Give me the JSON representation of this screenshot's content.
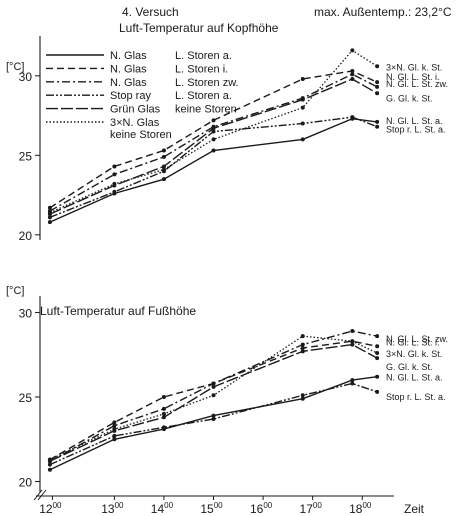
{
  "header": {
    "experiment": "4. Versuch",
    "max_temp": "max. Außentemp.: 23,2°C"
  },
  "charts": [
    {
      "type": "line",
      "title": "Luft-Temperatur auf Kopfhöhe",
      "ylabel": "[°C]",
      "ylim": [
        19.8,
        32
      ],
      "yticks": [
        20,
        25,
        30
      ],
      "legend": [
        {
          "glass": "N. Glas",
          "storen": "L. Storen a.",
          "style": "solid"
        },
        {
          "glass": "N. Glas",
          "storen": "L. Storen i.",
          "style": "dashed"
        },
        {
          "glass": "N. Glas",
          "storen": "L. Storen zw.",
          "style": "dashdot"
        },
        {
          "glass": "Stop ray",
          "storen": "L. Storen a.",
          "style": "dashdotdot"
        },
        {
          "glass": "Grün Glas",
          "storen": "keine Storen",
          "style": "longdash"
        },
        {
          "glass": "3×N. Glas",
          "glass2": "keine Storen",
          "storen": "",
          "style": "dotted"
        }
      ],
      "series": [
        {
          "style": "solid",
          "label": "N. Gl. L. St. a.",
          "x": [
            11.7,
            13.0,
            14.0,
            15.0,
            16.8,
            17.8,
            18.3
          ],
          "y": [
            20.8,
            22.6,
            23.5,
            25.3,
            26.0,
            27.3,
            27.1
          ]
        },
        {
          "style": "dashed",
          "label": "N. Gl. L. St. i.",
          "x": [
            11.7,
            13.0,
            14.0,
            15.0,
            16.8,
            17.8,
            18.3
          ],
          "y": [
            21.7,
            24.3,
            25.3,
            27.2,
            29.8,
            30.3,
            29.6
          ]
        },
        {
          "style": "dashdot",
          "label": "N. Gl. L. St. zw.",
          "x": [
            11.7,
            13.0,
            14.0,
            15.0,
            16.8,
            17.8,
            18.3
          ],
          "y": [
            21.5,
            23.8,
            24.9,
            26.8,
            28.6,
            30.1,
            29.3
          ]
        },
        {
          "style": "dashdotdot",
          "label": "Stop r. L. St. a.",
          "x": [
            11.7,
            13.0,
            14.0,
            15.0,
            16.8,
            17.8,
            18.3
          ],
          "y": [
            21.1,
            22.7,
            24.0,
            26.5,
            27.0,
            27.4,
            26.8
          ]
        },
        {
          "style": "longdash",
          "label": "G. Gl. k. St.",
          "x": [
            11.7,
            13.0,
            14.0,
            15.0,
            16.8,
            17.8,
            18.3
          ],
          "y": [
            21.3,
            23.1,
            24.3,
            26.7,
            28.5,
            29.8,
            28.9
          ]
        },
        {
          "style": "dotted",
          "label": "3×N. Gl. k. St.",
          "x": [
            11.7,
            13.0,
            14.0,
            15.0,
            16.8,
            17.8,
            18.3
          ],
          "y": [
            21.4,
            23.2,
            24.1,
            26.0,
            28.0,
            31.6,
            30.6
          ]
        }
      ]
    },
    {
      "type": "line",
      "title": "Luft-Temperatur auf Fußhöhe",
      "ylabel": "[°C]",
      "ylim": [
        19.5,
        30.5
      ],
      "yticks": [
        20,
        25,
        30
      ],
      "xlabel": "Zeit",
      "xticks": [
        {
          "v": 11.75,
          "h": "12",
          "m": "00"
        },
        {
          "v": 13,
          "h": "13",
          "m": "00"
        },
        {
          "v": 14,
          "h": "14",
          "m": "00"
        },
        {
          "v": 15,
          "h": "15",
          "m": "00"
        },
        {
          "v": 16,
          "h": "16",
          "m": "00"
        },
        {
          "v": 17,
          "h": "17",
          "m": "00"
        },
        {
          "v": 18,
          "h": "18",
          "m": "00"
        }
      ],
      "series": [
        {
          "style": "solid",
          "label": "N. Gl. L. St. a.",
          "x": [
            11.7,
            13.0,
            14.0,
            15.0,
            16.8,
            17.8,
            18.3
          ],
          "y": [
            20.7,
            22.5,
            23.1,
            23.9,
            24.9,
            26.0,
            26.2
          ]
        },
        {
          "style": "dashed",
          "label": "N. Gl. L. St. i.",
          "x": [
            11.7,
            13.0,
            14.0,
            15.0,
            16.8,
            17.8,
            18.3
          ],
          "y": [
            21.3,
            23.5,
            25.0,
            25.8,
            27.9,
            28.3,
            28.0
          ]
        },
        {
          "style": "dashdot",
          "label": "N. Gl. L. St. zw.",
          "x": [
            11.7,
            13.0,
            14.0,
            15.0,
            16.8,
            17.8,
            18.3
          ],
          "y": [
            21.2,
            23.3,
            24.3,
            25.8,
            28.1,
            28.9,
            28.6
          ]
        },
        {
          "style": "dashdotdot",
          "label": "Stop r. L. St. a.",
          "x": [
            11.7,
            13.0,
            14.0,
            15.0,
            16.8,
            17.8,
            18.3
          ],
          "y": [
            21.0,
            22.7,
            23.2,
            23.7,
            25.1,
            25.8,
            25.3
          ]
        },
        {
          "style": "longdash",
          "label": "G. Gl. k. St.",
          "x": [
            11.7,
            13.0,
            14.0,
            15.0,
            16.8,
            17.8,
            18.3
          ],
          "y": [
            21.2,
            23.0,
            23.8,
            25.6,
            27.7,
            28.1,
            27.3
          ]
        },
        {
          "style": "dotted",
          "label": "3×N. Gl. k. St.",
          "x": [
            11.7,
            13.0,
            14.0,
            15.0,
            16.8,
            17.8,
            18.3
          ],
          "y": [
            21.3,
            23.1,
            24.0,
            25.1,
            28.6,
            28.3,
            27.6
          ]
        }
      ]
    }
  ]
}
